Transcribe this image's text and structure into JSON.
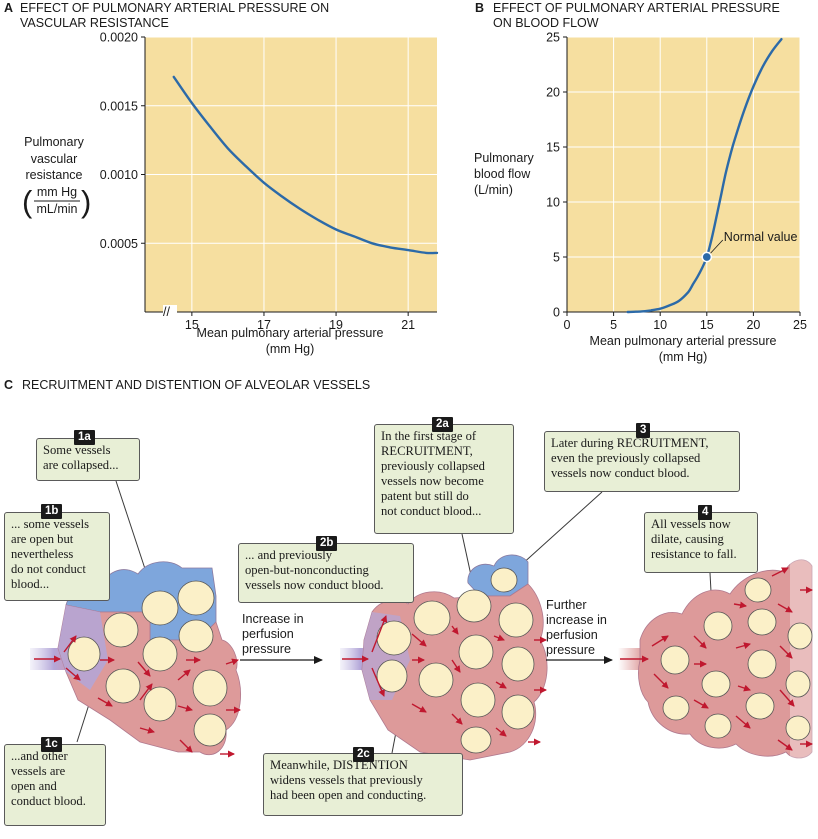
{
  "panel_a": {
    "letter": "A",
    "title_line1": "EFFECT OF PULMONARY ARTERIAL PRESSURE ON",
    "title_line2": "VASCULAR RESISTANCE",
    "ylabel_line1": "Pulmonary",
    "ylabel_line2": "vascular",
    "ylabel_line3": "resistance",
    "ylabel_unit_num": "mm Hg",
    "ylabel_unit_den": "mL/min",
    "xlabel_line1": "Mean pulmonary arterial pressure",
    "xlabel_line2": "(mm Hg)",
    "axis_break": "//"
  },
  "panel_b": {
    "letter": "B",
    "title_line1": "EFFECT OF PULMONARY ARTERIAL PRESSURE",
    "title_line2": "ON BLOOD FLOW",
    "ylabel_line1": "Pulmonary",
    "ylabel_line2": "blood flow",
    "ylabel_line3": "(L/min)",
    "xlabel_line1": "Mean pulmonary arterial pressure",
    "xlabel_line2": "(mm Hg)",
    "annotation": "Normal value"
  },
  "chart_data": [
    {
      "type": "line",
      "xlim": [
        13.7,
        21.8
      ],
      "ylim": [
        0.0,
        0.002
      ],
      "x_ticks": [
        "15",
        "17",
        "19",
        "21"
      ],
      "x_tick_values": [
        15,
        17,
        19,
        21
      ],
      "y_ticks": [
        "0.0005",
        "0.0010",
        "0.0015",
        "0.0020"
      ],
      "y_tick_values": [
        0.0005,
        0.001,
        0.0015,
        0.002
      ],
      "grid": true,
      "x_axis_break": true,
      "colors": {
        "plot_bg": "#f6dfa0",
        "grid": "#ffffff",
        "line": "#2c6aa8"
      },
      "series": [
        {
          "x": [
            14.5,
            15.0,
            15.5,
            16.0,
            16.5,
            17.0,
            17.5,
            18.0,
            18.5,
            19.0,
            19.5,
            20.0,
            20.5,
            21.0,
            21.5,
            21.8
          ],
          "y": [
            0.00171,
            0.00152,
            0.00135,
            0.00119,
            0.00106,
            0.00094,
            0.00084,
            0.00075,
            0.00067,
            0.0006,
            0.00055,
            0.0005,
            0.00047,
            0.00045,
            0.00043,
            0.00043
          ]
        }
      ]
    },
    {
      "type": "line",
      "xlim": [
        0,
        25
      ],
      "ylim": [
        0,
        25
      ],
      "x_ticks": [
        "0",
        "5",
        "10",
        "15",
        "20",
        "25"
      ],
      "x_tick_values": [
        0,
        5,
        10,
        15,
        20,
        25
      ],
      "y_ticks": [
        "0",
        "5",
        "10",
        "15",
        "20",
        "25"
      ],
      "y_tick_values": [
        0,
        5,
        10,
        15,
        20,
        25
      ],
      "grid": true,
      "colors": {
        "plot_bg": "#f6dfa0",
        "grid": "#ffffff",
        "line": "#2c6aa8",
        "marker": "#2c6aa8"
      },
      "series": [
        {
          "x": [
            6.5,
            8,
            9,
            10,
            11,
            12,
            13,
            13.5,
            14,
            14.5,
            15,
            15.5,
            16,
            16.5,
            17,
            17.5,
            18,
            19,
            20,
            21,
            22,
            23
          ],
          "y": [
            0,
            0.05,
            0.15,
            0.3,
            0.6,
            1.0,
            1.8,
            2.5,
            3.2,
            4.0,
            5.0,
            6.6,
            8.5,
            10.5,
            12.5,
            14.2,
            15.7,
            18.3,
            20.5,
            22.3,
            23.7,
            24.8
          ]
        }
      ],
      "highlight_point": {
        "x": 15,
        "y": 5,
        "label": "Normal value"
      }
    }
  ],
  "panel_c": {
    "letter": "C",
    "title": "RECRUITMENT AND DISTENTION OF ALVEOLAR VESSELS",
    "colors": {
      "collapsed": "#7ea6dc",
      "conducting": "#dd9a9a",
      "alveolus": "#fbf0c8",
      "arrow": "#c0182f",
      "callout_bg": "#e8efd6"
    },
    "callouts": [
      {
        "badge": "1a",
        "text": "Some vessels\nare collapsed..."
      },
      {
        "badge": "1b",
        "text": "... some vessels\nare open but\nnevertheless\ndo not conduct\nblood..."
      },
      {
        "badge": "1c",
        "text": "...and other\nvessels are\nopen and\nconduct blood."
      },
      {
        "badge": "2a",
        "text": "In the first stage of\nRECRUITMENT,\npreviously collapsed\nvessels now become\npatent but still do\nnot conduct blood..."
      },
      {
        "badge": "2b",
        "text": "... and previously\nopen-but-nonconducting\nvessels now conduct blood."
      },
      {
        "badge": "2c",
        "text": "Meanwhile, DISTENTION\nwidens vessels that previously\nhad been open and conducting."
      },
      {
        "badge": "3",
        "text": "Later during RECRUITMENT,\neven the previously collapsed\nvessels now conduct blood."
      },
      {
        "badge": "4",
        "text": "All vessels now\ndilate, causing\nresistance to fall."
      }
    ],
    "step1": "Increase in\nperfusion\npressure",
    "step2": "Further\nincrease in\nperfusion\npressure"
  }
}
